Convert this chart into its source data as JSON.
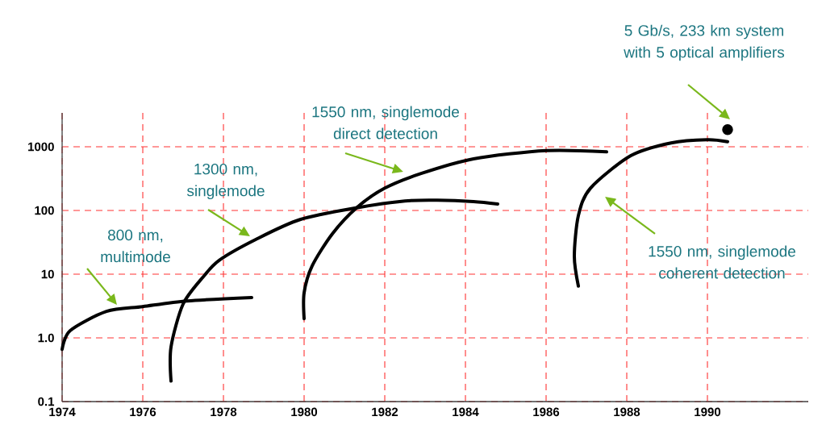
{
  "chart_data": {
    "type": "line",
    "log": "y",
    "grid": true,
    "marker": "none",
    "xlim": [
      1974,
      1992.5
    ],
    "ylim": [
      0.1,
      3400
    ],
    "xticks": [
      1974,
      1976,
      1978,
      1980,
      1982,
      1984,
      1986,
      1988,
      1990
    ],
    "yticks": [
      0.1,
      {
        "value": 1,
        "label": "1.0"
      },
      10,
      100,
      1000
    ],
    "series": [
      {
        "color": "#000000",
        "x": [
          1974.0,
          1974.2,
          1975.1,
          1976.0,
          1977.1,
          1978.7
        ],
        "values": [
          0.66,
          1.3,
          2.6,
          3.1,
          3.8,
          4.3
        ]
      },
      {
        "color": "#000000",
        "x": [
          1976.7,
          1976.7,
          1977.0,
          1977.5,
          1977.9,
          1978.8,
          1979.9,
          1981.3,
          1982.5,
          1983.3,
          1984.2,
          1984.8
        ],
        "values": [
          0.21,
          0.72,
          3.4,
          9.1,
          16.6,
          35,
          72,
          110,
          141,
          145,
          138,
          126
        ]
      },
      {
        "color": "#000000",
        "x": [
          1980.0,
          1980.0,
          1980.2,
          1980.7,
          1981.3,
          1982.0,
          1982.9,
          1984.2,
          1986.0,
          1987.5
        ],
        "values": [
          2.0,
          5.1,
          13.5,
          43,
          110,
          224,
          380,
          646,
          870,
          832
        ]
      },
      {
        "color": "#000000",
        "x": [
          1986.8,
          1986.7,
          1986.8,
          1987.1,
          1988.1,
          1989.1,
          1990.0,
          1990.5
        ],
        "values": [
          6.5,
          19,
          83,
          224,
          724,
          1150,
          1290,
          1200
        ]
      },
      {
        "type": "scatter",
        "color": "#000000",
        "marker": "circle",
        "x": [
          1990.5
        ],
        "values": [
          1860
        ]
      }
    ],
    "annotations": [
      "800 nm, multimode",
      "1300 nm, singlemode",
      "1550 nm, singlemode direct detection",
      "1550 nm, singlemode coherent detection",
      "5 Gb/s, 233 km system with 5 optical amplifiers"
    ]
  }
}
